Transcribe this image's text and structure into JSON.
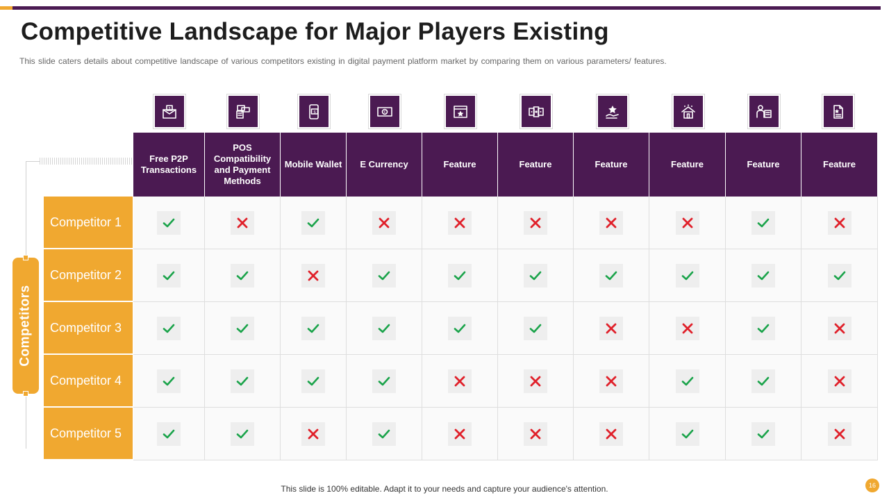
{
  "title": "Competitive Landscape for Major Players Existing",
  "subtitle": "This slide caters details about competitive landscape of various competitors existing in digital payment platform market by comparing them on various parameters/ features.",
  "side_label": "Competitors",
  "icons": [
    "email-money-icon",
    "pos-terminal-icon",
    "mobile-wallet-icon",
    "e-currency-icon",
    "browser-star-icon",
    "cards-stars-icon",
    "hand-star-icon",
    "house-stars-icon",
    "person-list-icon",
    "document-star-icon"
  ],
  "columns": [
    "Free P2P Transactions",
    "POS Compatibility and Payment Methods",
    "Mobile Wallet",
    "E Currency",
    "Feature",
    "Feature",
    "Feature",
    "Feature",
    "Feature",
    "Feature"
  ],
  "rows": [
    {
      "label": "Competitor 1",
      "values": [
        true,
        false,
        true,
        false,
        false,
        false,
        false,
        false,
        true,
        false
      ]
    },
    {
      "label": "Competitor 2",
      "values": [
        true,
        true,
        false,
        true,
        true,
        true,
        true,
        true,
        true,
        true
      ]
    },
    {
      "label": "Competitor 3",
      "values": [
        true,
        true,
        true,
        true,
        true,
        true,
        false,
        false,
        true,
        false
      ]
    },
    {
      "label": "Competitor 4",
      "values": [
        true,
        true,
        true,
        true,
        false,
        false,
        false,
        true,
        true,
        false
      ]
    },
    {
      "label": "Competitor 5",
      "values": [
        true,
        true,
        false,
        true,
        false,
        false,
        false,
        true,
        true,
        false
      ]
    }
  ],
  "colors": {
    "check": "#1aa34a",
    "cross": "#e0202a",
    "header": "#4b1a52",
    "accent": "#f0a830"
  },
  "footer": "This slide is 100% editable. Adapt it to your needs and capture your audience's attention.",
  "page_number": "16"
}
